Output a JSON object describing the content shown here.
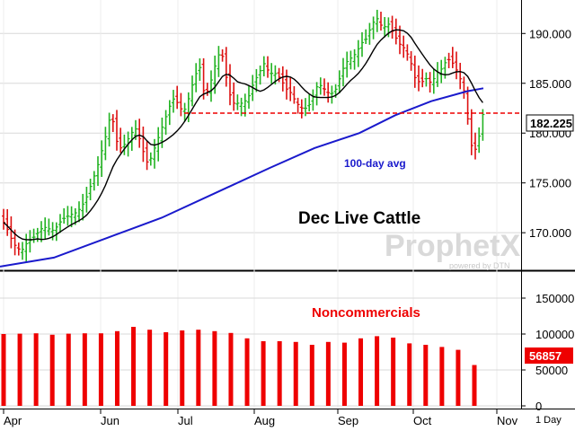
{
  "chart_data": [
    {
      "type": "candlestick",
      "title": "Dec Live Cattle",
      "y_axis_ticks": [
        "190.000",
        "185.000",
        "180.000",
        "175.000",
        "170.000"
      ],
      "ylim": [
        166.5,
        193
      ],
      "last_price_label": "182.225",
      "last_price": 182.225,
      "reference_line": 182.0,
      "ma100_label": "100-day avg",
      "x_axis_months": [
        "Apr",
        "Jun",
        "Jul",
        "Aug",
        "Sep",
        "Oct",
        "Nov"
      ],
      "timeframe": "1 Day",
      "watermark": "ProphetX",
      "watermark_sub": "powered by DTN",
      "colors": {
        "up": "#22b322",
        "down": "#dd1111",
        "ma_short": "#000000",
        "ma100": "#1a1acc",
        "reference": "#ee0000"
      }
    },
    {
      "type": "bar",
      "title": "Noncommercials",
      "y_axis_ticks": [
        "150000",
        "100000",
        "50000",
        "0"
      ],
      "ylim": [
        0,
        180000
      ],
      "last_value_label": "56857",
      "values": [
        100000,
        100500,
        101000,
        99000,
        100500,
        101000,
        101000,
        104000,
        110000,
        106000,
        102500,
        105000,
        106000,
        104000,
        101500,
        94000,
        90000,
        90000,
        89000,
        85000,
        89000,
        88000,
        94000,
        97000,
        95000,
        87000,
        85000,
        82000,
        78000,
        56857
      ],
      "color": "#ee0000"
    }
  ]
}
